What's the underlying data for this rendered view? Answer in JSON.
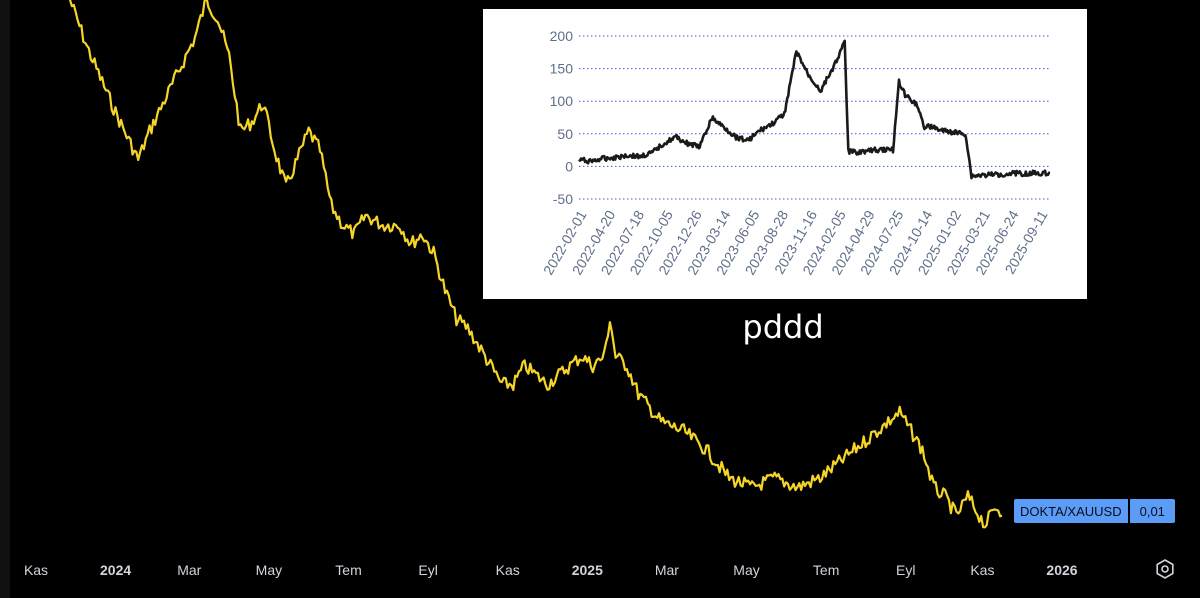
{
  "chart_data": [
    {
      "type": "line",
      "series": [
        {
          "color": "#f5d628",
          "points": [
            [
              0,
              0.005
            ],
            [
              3,
              0.0045
            ],
            [
              8,
              0.0038
            ],
            [
              12,
              0.0033
            ],
            [
              14,
              0.0036
            ],
            [
              18,
              0.0041
            ],
            [
              22,
              0.0046
            ],
            [
              24,
              0.005
            ],
            [
              26,
              0.0048
            ],
            [
              28,
              0.0044
            ],
            [
              30,
              0.0036
            ],
            [
              32,
              0.0037
            ],
            [
              34,
              0.0039
            ],
            [
              36,
              0.0034
            ],
            [
              38,
              0.003
            ],
            [
              40,
              0.0033
            ],
            [
              42,
              0.0036
            ],
            [
              44,
              0.0034
            ],
            [
              46,
              0.0028
            ],
            [
              48,
              0.0026
            ],
            [
              50,
              0.0025
            ],
            [
              52,
              0.0027
            ],
            [
              55,
              0.0026
            ],
            [
              58,
              0.0026
            ],
            [
              60,
              0.0024
            ],
            [
              62,
              0.0025
            ],
            [
              64,
              0.0023
            ],
            [
              66,
              0.0019
            ],
            [
              68,
              0.0016
            ],
            [
              70,
              0.0015
            ],
            [
              72,
              0.0013
            ],
            [
              74,
              0.0011
            ],
            [
              76,
              0.0009
            ],
            [
              78,
              0.0009
            ],
            [
              80,
              0.0011
            ],
            [
              82,
              0.001
            ],
            [
              84,
              0.0009
            ],
            [
              86,
              0.001
            ],
            [
              88,
              0.0011
            ],
            [
              90,
              0.0012
            ],
            [
              92,
              0.0011
            ],
            [
              94,
              0.0012
            ],
            [
              95,
              0.0016
            ],
            [
              96,
              0.0012
            ],
            [
              98,
              0.0011
            ],
            [
              100,
              0.0008
            ],
            [
              104,
              0.0005
            ],
            [
              108,
              0.0004
            ],
            [
              112,
              0.0002
            ],
            [
              116,
              -0.0001
            ],
            [
              120,
              -0.0002
            ],
            [
              124,
              -0.0001
            ],
            [
              128,
              -0.0002
            ],
            [
              132,
              -0.0001
            ],
            [
              136,
              0.0001
            ],
            [
              140,
              0.0003
            ],
            [
              144,
              0.0005
            ],
            [
              146,
              0.0006
            ],
            [
              148,
              0.0004
            ],
            [
              150,
              0.0002
            ],
            [
              152,
              -0.0002
            ],
            [
              154,
              -0.0003
            ],
            [
              156,
              -0.0005
            ],
            [
              158,
              -0.0003
            ],
            [
              161,
              -0.0006
            ],
            [
              163,
              -0.0004
            ],
            [
              164,
              -0.0005
            ]
          ]
        }
      ],
      "xlim": [
        0,
        164
      ],
      "ylim": [
        -0.0006,
        0.005
      ],
      "xticks": [
        {
          "x": 1,
          "label": "Kas"
        },
        {
          "x": 14.5,
          "label": "2024",
          "bold": true
        },
        {
          "x": 27,
          "label": "Mar"
        },
        {
          "x": 40.5,
          "label": "May"
        },
        {
          "x": 54,
          "label": "Tem"
        },
        {
          "x": 67.5,
          "label": "Eyl"
        },
        {
          "x": 81,
          "label": "Kas"
        },
        {
          "x": 94.5,
          "label": "2025",
          "bold": true
        },
        {
          "x": 108,
          "label": "Mar"
        },
        {
          "x": 121.5,
          "label": "May"
        },
        {
          "x": 135,
          "label": "Tem"
        },
        {
          "x": 148.5,
          "label": "Eyl"
        },
        {
          "x": 161.5,
          "label": "Kas"
        },
        {
          "x": 175,
          "label": "2026",
          "bold": true
        }
      ]
    },
    {
      "type": "line",
      "series": [
        {
          "color": "#1a1a1a",
          "points": [
            [
              0,
              10
            ],
            [
              1,
              8
            ],
            [
              2,
              12
            ],
            [
              3,
              14
            ],
            [
              4,
              17
            ],
            [
              5,
              15
            ],
            [
              6,
              20
            ],
            [
              7,
              35
            ],
            [
              8,
              45
            ],
            [
              9,
              35
            ],
            [
              10,
              30
            ],
            [
              11,
              74
            ],
            [
              12,
              60
            ],
            [
              13,
              45
            ],
            [
              14,
              40
            ],
            [
              15,
              55
            ],
            [
              16,
              65
            ],
            [
              17,
              80
            ],
            [
              18,
              176
            ],
            [
              19,
              140
            ],
            [
              20,
              116
            ],
            [
              21,
              150
            ],
            [
              22,
              190
            ],
            [
              22.3,
              23
            ],
            [
              23,
              22
            ],
            [
              24,
              24
            ],
            [
              25,
              26
            ],
            [
              26,
              25
            ],
            [
              26.5,
              130
            ],
            [
              27,
              110
            ],
            [
              28,
              95
            ],
            [
              28.6,
              60
            ],
            [
              29,
              62
            ],
            [
              30,
              55
            ],
            [
              31,
              52
            ],
            [
              32,
              50
            ],
            [
              32.5,
              -15
            ],
            [
              33,
              -14
            ],
            [
              34,
              -13
            ],
            [
              35,
              -12
            ],
            [
              36,
              -10
            ],
            [
              37,
              -11
            ],
            [
              38,
              -10
            ],
            [
              39,
              -10
            ]
          ]
        }
      ],
      "ylim": [
        -50,
        200
      ],
      "yticks": [
        -50,
        0,
        50,
        100,
        150,
        200
      ],
      "xticks": [
        "2022-02-01",
        "2022-04-20",
        "2022-07-18",
        "2022-10-05",
        "2022-12-26",
        "2023-03-14",
        "2023-06-05",
        "2023-08-28",
        "2023-11-16",
        "2024-02-05",
        "2024-04-29",
        "2024-07-25",
        "2024-10-14",
        "2025-01-02",
        "2025-03-21",
        "2025-06-24",
        "2025-09-11"
      ],
      "grid": true
    }
  ],
  "price_tag": {
    "symbol": "DOKTA/XAUUSD",
    "value": "0,01"
  },
  "caption": "pddd",
  "icons": {
    "settings": "gear-icon"
  }
}
